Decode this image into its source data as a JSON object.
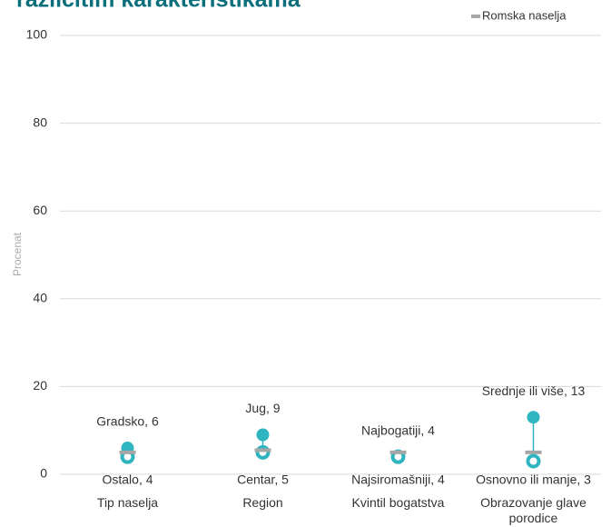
{
  "chart_data": {
    "type": "dot_range",
    "title": "različitim karakteristikama",
    "y_label": "Procenat",
    "categories": [
      "Tip naselja",
      "Region",
      "Kvintil bogatstva",
      "Obrazovanje glave porodice"
    ],
    "series": [
      {
        "name": "Romska naselja",
        "color": "#a6a6a6",
        "values": [
          5,
          5.5,
          5,
          5
        ]
      },
      {
        "color": "#2fb5c0",
        "values": [
          6,
          9,
          4,
          13
        ],
        "value_labels": [
          "Gradsko, 6",
          "Jug, 9",
          "Najbogatiji, 4",
          "Srednje ili više, 13"
        ]
      },
      {
        "color": "#2fb5c0",
        "values": [
          4,
          5,
          4,
          3
        ],
        "value_labels": [
          "Ostalo, 4",
          "Centar, 5",
          "Najsiromašniji, 4",
          "Osnovno ili manje, 3"
        ]
      }
    ],
    "ylim": [
      0,
      100
    ],
    "yticks": [
      0,
      20,
      40,
      60,
      80,
      100
    ],
    "grid": true,
    "legend": "top-right"
  }
}
